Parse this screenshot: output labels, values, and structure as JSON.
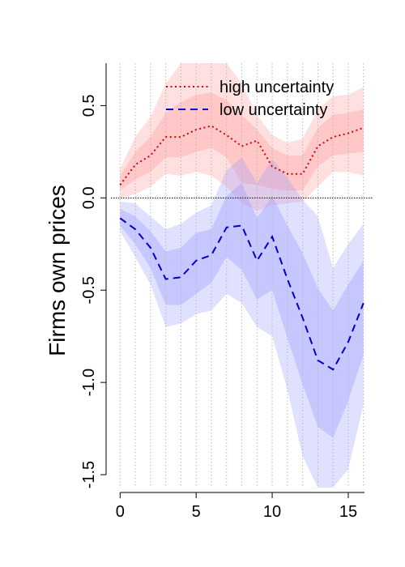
{
  "chart_data": {
    "type": "line",
    "title": "",
    "xlabel": "",
    "ylabel": "Firms own prices",
    "xlim": [
      -0.6,
      16.6
    ],
    "ylim": [
      -1.57,
      0.73
    ],
    "x_ticks": [
      0,
      5,
      10,
      15
    ],
    "y_ticks": [
      -1.5,
      -1.0,
      -0.5,
      0.0,
      0.5
    ],
    "y_tick_labels": [
      "-1.5",
      "-1.0",
      "-0.5",
      "0.0",
      "0.5"
    ],
    "vertical_grid": true,
    "zero_line": true,
    "legend_position": "top-right",
    "x": [
      0,
      1,
      2,
      3,
      4,
      5,
      6,
      7,
      8,
      9,
      10,
      11,
      12,
      13,
      14,
      15,
      16
    ],
    "series": [
      {
        "name": "high uncertainty",
        "style": "dotted",
        "color": "#dd0000",
        "band_color": "#ff9999",
        "values": [
          0.07,
          0.18,
          0.23,
          0.33,
          0.33,
          0.37,
          0.39,
          0.34,
          0.28,
          0.31,
          0.17,
          0.13,
          0.13,
          0.28,
          0.33,
          0.35,
          0.38
        ],
        "band_inner": {
          "lower": [
            0.04,
            0.1,
            0.14,
            0.22,
            0.22,
            0.25,
            0.27,
            0.22,
            0.08,
            0.07,
            0.05,
            0.04,
            0.04,
            0.17,
            0.23,
            0.24,
            0.25
          ],
          "upper": [
            0.12,
            0.25,
            0.33,
            0.46,
            0.52,
            0.56,
            0.57,
            0.53,
            0.45,
            0.37,
            0.27,
            0.23,
            0.23,
            0.38,
            0.45,
            0.46,
            0.48
          ]
        },
        "band_outer": {
          "lower": [
            0.0,
            0.02,
            0.06,
            0.13,
            0.12,
            0.14,
            0.12,
            0.06,
            -0.03,
            -0.07,
            -0.04,
            -0.03,
            -0.02,
            0.06,
            0.14,
            0.14,
            0.12
          ],
          "upper": [
            0.16,
            0.33,
            0.44,
            0.62,
            0.73,
            0.73,
            0.73,
            0.73,
            0.62,
            0.45,
            0.34,
            0.3,
            0.32,
            0.48,
            0.55,
            0.56,
            0.6
          ]
        }
      },
      {
        "name": "low uncertainty",
        "style": "dashed",
        "color": "#0000cc",
        "band_color": "#9999ff",
        "values": [
          -0.11,
          -0.17,
          -0.27,
          -0.44,
          -0.43,
          -0.34,
          -0.31,
          -0.16,
          -0.15,
          -0.34,
          -0.21,
          -0.44,
          -0.65,
          -0.88,
          -0.93,
          -0.78,
          -0.57
        ],
        "band_inner": {
          "lower": [
            -0.15,
            -0.25,
            -0.38,
            -0.58,
            -0.58,
            -0.52,
            -0.46,
            -0.32,
            -0.39,
            -0.55,
            -0.5,
            -0.76,
            -1.01,
            -1.24,
            -1.3,
            -1.1,
            -0.85
          ],
          "upper": [
            -0.06,
            -0.1,
            -0.18,
            -0.29,
            -0.27,
            -0.19,
            -0.17,
            0.01,
            0.08,
            -0.11,
            0.01,
            -0.15,
            -0.3,
            -0.49,
            -0.61,
            -0.47,
            -0.34
          ]
        },
        "band_outer": {
          "lower": [
            -0.18,
            -0.32,
            -0.47,
            -0.7,
            -0.68,
            -0.63,
            -0.61,
            -0.52,
            -0.57,
            -0.7,
            -0.75,
            -1.04,
            -1.4,
            -1.57,
            -1.57,
            -1.47,
            -1.12
          ],
          "upper": [
            -0.02,
            -0.03,
            -0.1,
            -0.17,
            -0.14,
            -0.08,
            -0.04,
            0.15,
            0.22,
            0.08,
            0.21,
            0.11,
            -0.01,
            -0.1,
            -0.38,
            -0.25,
            -0.14
          ]
        }
      }
    ]
  }
}
